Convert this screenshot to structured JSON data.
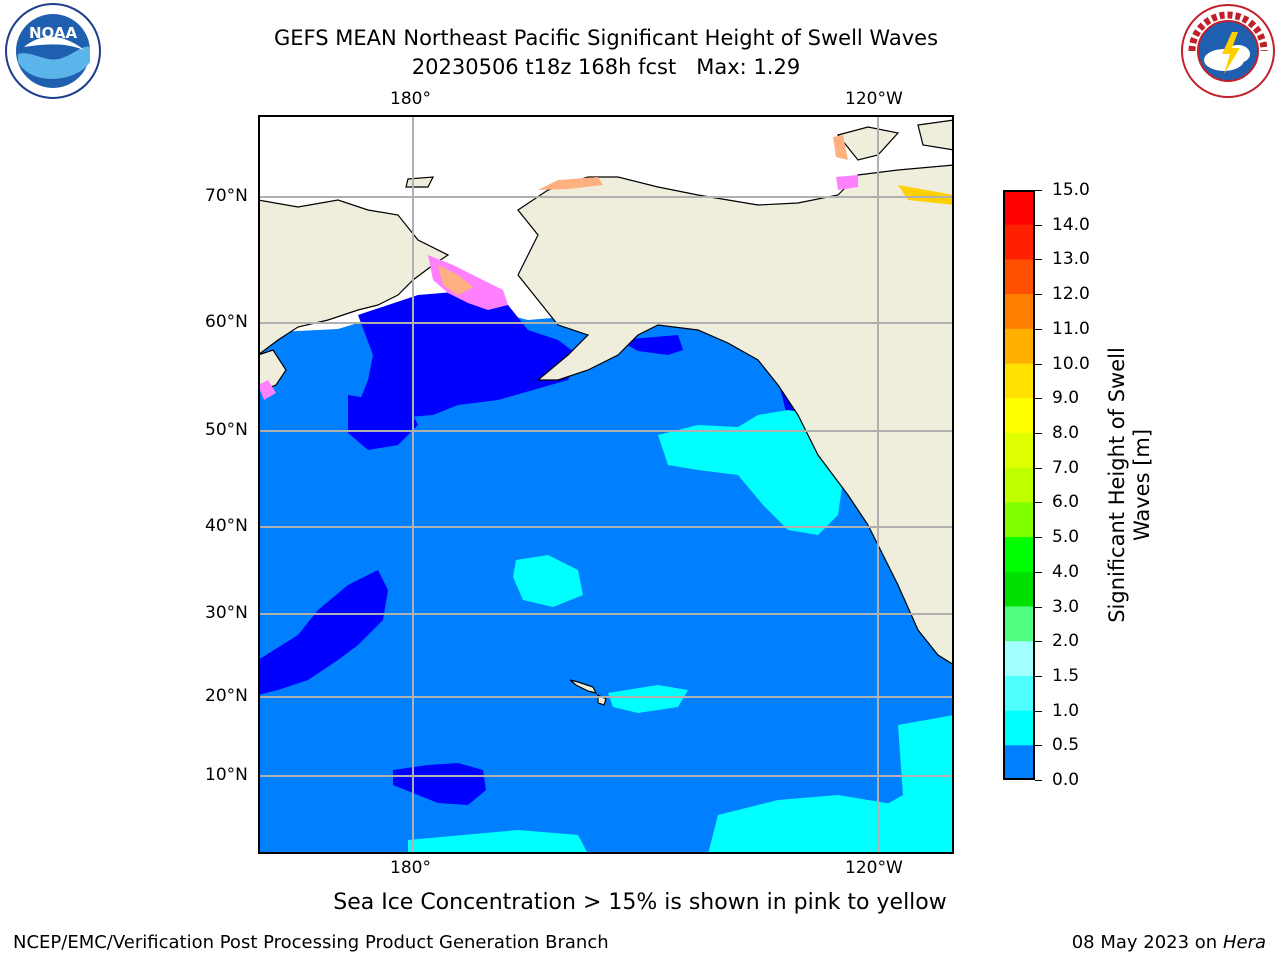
{
  "title": {
    "line1": "GEFS MEAN Northeast Pacific Significant Height of Swell Waves",
    "line2_date": "20230506",
    "line2_cycle": "t18z",
    "line2_lead": "168h fcst",
    "line2_max_label": "Max:",
    "line2_max_value": "1.29"
  },
  "logos": {
    "left": {
      "icon": "noaa-logo",
      "text": "NOAA"
    },
    "right": {
      "icon": "nws-logo",
      "text": "NATIONAL WEATHER SERVICE"
    }
  },
  "map": {
    "top_lon_labels": [
      "180°",
      "120°W"
    ],
    "bottom_lon_labels": [
      "180°",
      "120°W"
    ],
    "lat_labels": [
      "70°N",
      "60°N",
      "50°N",
      "40°N",
      "30°N",
      "20°N",
      "10°N"
    ],
    "colors": {
      "land": "#efeedd",
      "ocean_0_0_5": "#0000ff",
      "ocean_0_5_1_0": "#0080ff",
      "ocean_1_0_1_5": "#00ffff",
      "ice_pink": "#ff80ff",
      "ice_peach": "#ffb080",
      "ice_yellow": "#ffd000",
      "grid": "#b0b0b0"
    }
  },
  "colorbar": {
    "label_line1": "Significant Height of Swell",
    "label_line2": "Waves [m]",
    "ticks": [
      "15.0",
      "14.0",
      "13.0",
      "12.0",
      "11.0",
      "10.0",
      "9.0",
      "8.0",
      "7.0",
      "6.0",
      "5.0",
      "4.0",
      "3.0",
      "2.0",
      "1.5",
      "1.0",
      "0.5",
      "0.0"
    ],
    "colors": [
      "#ff0000",
      "#ff2000",
      "#ff5000",
      "#ff8000",
      "#ffb000",
      "#ffe000",
      "#ffff00",
      "#e0ff00",
      "#c0ff00",
      "#80ff00",
      "#00ff00",
      "#00e000",
      "#50ff80",
      "#a0ffff",
      "#50ffff",
      "#00ffff",
      "#0080ff",
      "#0000ff"
    ]
  },
  "caption": "Sea Ice Concentration > 15% is shown in pink to yellow",
  "footer": {
    "left": "NCEP/EMC/Verification Post Processing Product Generation Branch",
    "right_date": "08 May 2023 on",
    "right_machine": "Hera"
  }
}
